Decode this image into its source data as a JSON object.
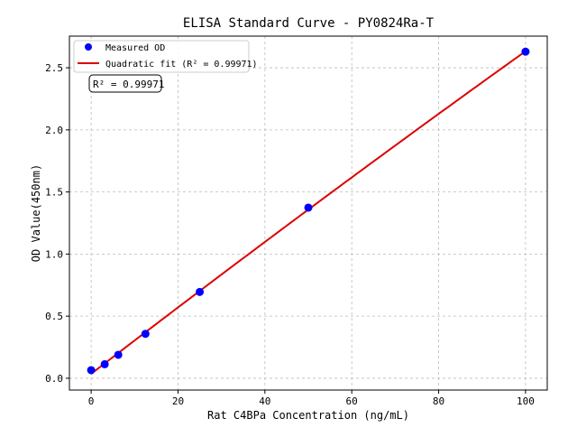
{
  "chart_data": {
    "type": "scatter",
    "title": "ELISA Standard Curve - PY0824Ra-T",
    "xlabel": "Rat C4BPa Concentration (ng/mL)",
    "ylabel": "OD Value(450nm)",
    "xlim": [
      -5,
      105
    ],
    "ylim": [
      -0.095,
      2.755
    ],
    "xticks": [
      0,
      20,
      40,
      60,
      80,
      100
    ],
    "yticks": [
      0.0,
      0.5,
      1.0,
      1.5,
      2.0,
      2.5
    ],
    "xtick_labels": [
      "0",
      "20",
      "40",
      "60",
      "80",
      "100"
    ],
    "ytick_labels": [
      "0.0",
      "0.5",
      "1.0",
      "1.5",
      "2.0",
      "2.5"
    ],
    "grid": true,
    "legend_position": "top-left",
    "series": [
      {
        "name": "Measured OD",
        "kind": "scatter",
        "color": "#0000ff",
        "x": [
          0,
          3.125,
          6.25,
          12.5,
          25,
          50,
          100
        ],
        "y": [
          0.065,
          0.113,
          0.189,
          0.358,
          0.695,
          1.374,
          2.63
        ]
      },
      {
        "name": "Quadratic fit (R² = 0.99971)",
        "kind": "line",
        "color": "#dd0000"
      }
    ],
    "annotation": "R² = 0.99971"
  }
}
